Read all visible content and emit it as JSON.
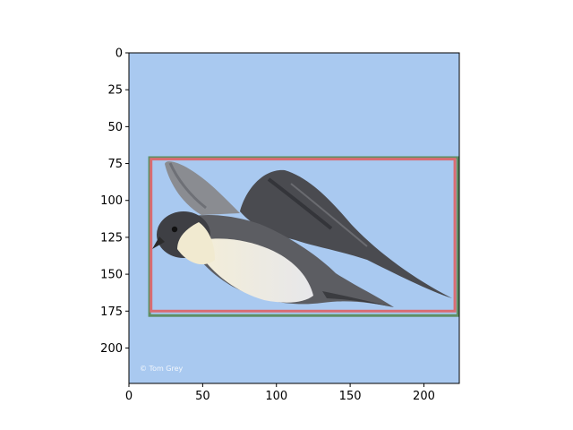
{
  "image": {
    "subject": "bird-in-flight",
    "background_color": "#a9c9f0",
    "watermark": "© Tom Grey",
    "extent": {
      "x": [
        0,
        224
      ],
      "y": [
        0,
        224
      ]
    }
  },
  "axes": {
    "x": {
      "ticks": [
        0,
        50,
        100,
        150,
        200
      ],
      "labels": [
        "0",
        "50",
        "100",
        "150",
        "200"
      ]
    },
    "y": {
      "ticks": [
        0,
        25,
        50,
        75,
        100,
        125,
        150,
        175,
        200
      ],
      "labels": [
        "0",
        "25",
        "50",
        "75",
        "100",
        "125",
        "150",
        "175",
        "200"
      ]
    }
  },
  "boxes": [
    {
      "name": "box-green",
      "color": "#5f8f63",
      "x0": 14,
      "y0": 71,
      "x1": 223,
      "y1": 178
    },
    {
      "name": "box-red",
      "color": "#d96c72",
      "x0": 15,
      "y0": 72,
      "x1": 221,
      "y1": 175
    }
  ]
}
